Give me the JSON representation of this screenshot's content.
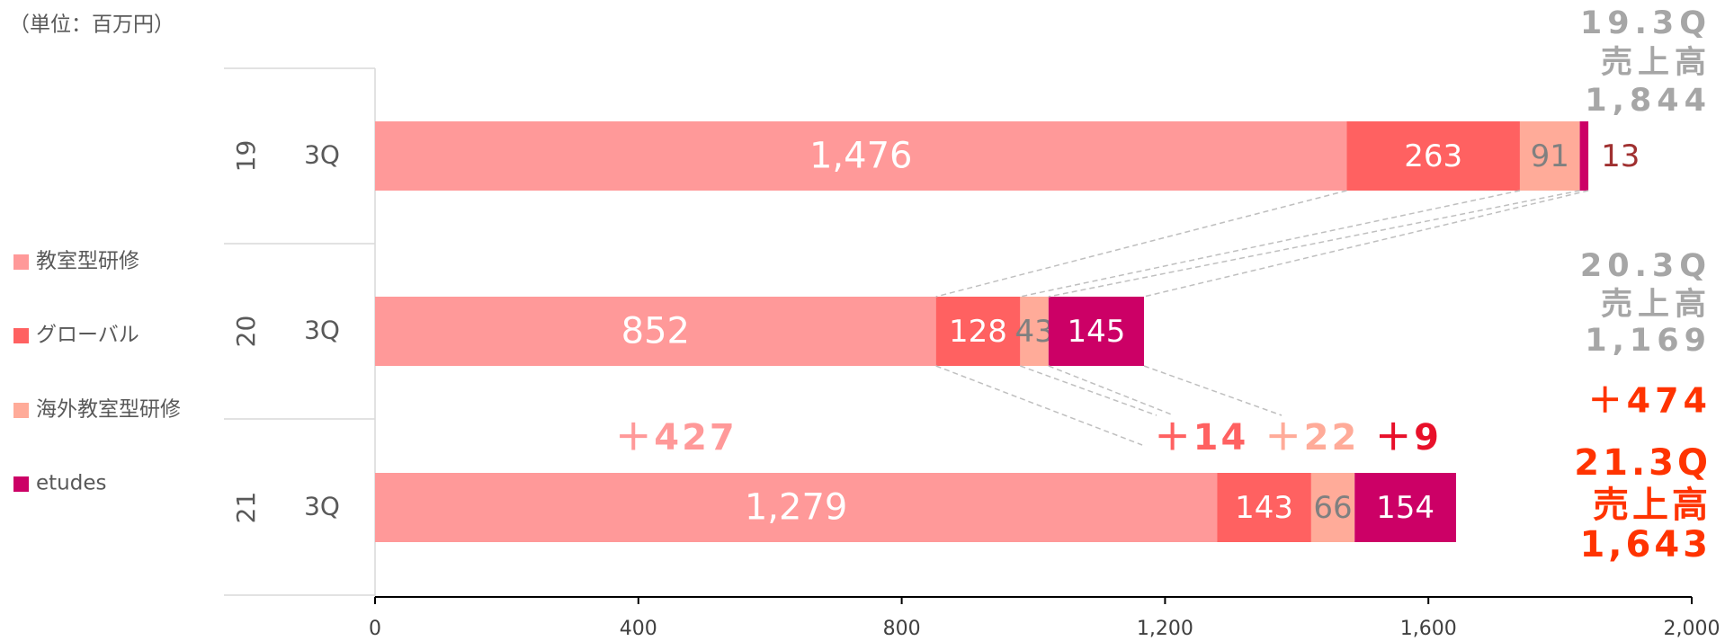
{
  "chart_data": {
    "type": "stacked-barh",
    "unit_label": "（単位：百万円）",
    "categories": [
      "19",
      "20",
      "21"
    ],
    "subcategories": [
      "3Q",
      "3Q",
      "3Q"
    ],
    "series": [
      {
        "name": "教室型研修",
        "color": "#ff9999",
        "label_color": "#ffffff",
        "values": [
          1476,
          852,
          1279
        ],
        "value_labels": [
          "1,476",
          "852",
          "1,279"
        ]
      },
      {
        "name": "グローバル",
        "color": "#ff6161",
        "label_color": "#ffffff",
        "values": [
          263,
          128,
          143
        ]
      },
      {
        "name": "海外教室型研修",
        "color": "#ffab99",
        "label_color": "#808080",
        "values": [
          91,
          43,
          66
        ]
      },
      {
        "name": "etudes",
        "color": "#cc0066",
        "label_color": "#ffffff",
        "values": [
          13,
          145,
          154
        ]
      }
    ],
    "xlim": [
      0,
      2000
    ],
    "xticks": [
      0,
      400,
      800,
      {
        "value": 1200,
        "label": "1,200"
      },
      {
        "value": 1600,
        "label": "1,600"
      },
      {
        "value": 2000,
        "label": "2,000"
      }
    ],
    "changes": [
      {
        "text": "＋427",
        "color": "#ff9999"
      },
      {
        "text": "＋14",
        "color": "#ff6161"
      },
      {
        "text": "＋22",
        "color": "#ffab99"
      },
      {
        "text": "＋9",
        "color": "#e8102a"
      }
    ],
    "totals": [
      {
        "lines": [
          "19.3Q",
          "売上高",
          "1,844"
        ],
        "color": "#a6a6a6"
      },
      {
        "lines": [
          "20.3Q",
          "売上高",
          "1,169"
        ],
        "color": "#a6a6a6"
      },
      {
        "lines": [
          "21.3Q",
          "売上高",
          "1,643"
        ],
        "color": "#ff3300"
      }
    ],
    "total_change": {
      "text": "＋474",
      "color": "#ff3300"
    }
  }
}
